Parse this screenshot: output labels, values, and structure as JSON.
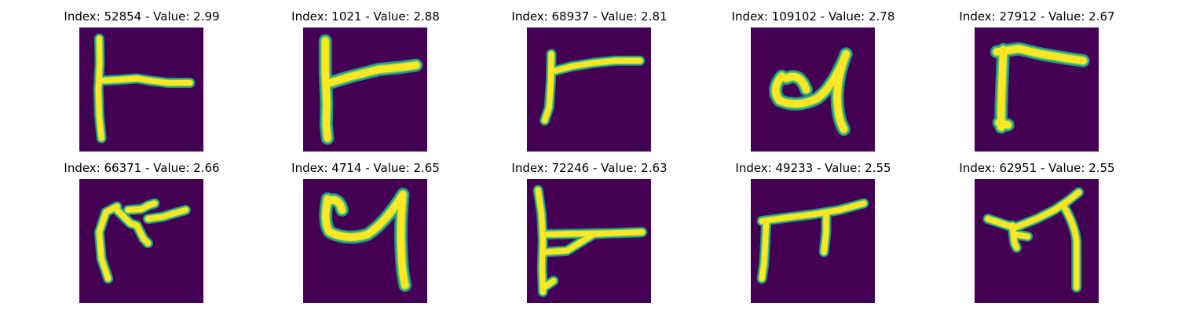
{
  "figure": {
    "panels": [
      {
        "title": "Index: 52854 - Value: 2.99",
        "glyph": "T-shape-left-stem"
      },
      {
        "title": "Index: 1021 - Value: 2.88",
        "glyph": "T-shape-bold"
      },
      {
        "title": "Index: 68937 - Value: 2.81",
        "glyph": "T-shape-short"
      },
      {
        "title": "Index: 109102 - Value: 2.78",
        "glyph": "4-like-loop"
      },
      {
        "title": "Index: 27912 - Value: 2.67",
        "glyph": "gamma-shape"
      },
      {
        "title": "Index: 66371 - Value: 2.66",
        "glyph": "m-like-scribble"
      },
      {
        "title": "Index: 4714 - Value: 2.65",
        "glyph": "4-like-loop-bold"
      },
      {
        "title": "Index: 72246 - Value: 2.63",
        "glyph": "T-shape-tall"
      },
      {
        "title": "Index: 49233 - Value: 2.55",
        "glyph": "pi-shape"
      },
      {
        "title": "Index: 62951 - Value: 2.55",
        "glyph": "arc-with-branches"
      }
    ],
    "colors": {
      "background": "#440154",
      "stroke_edge": "#21918c",
      "stroke_mid": "#5ec962",
      "stroke_core": "#fde725"
    }
  }
}
